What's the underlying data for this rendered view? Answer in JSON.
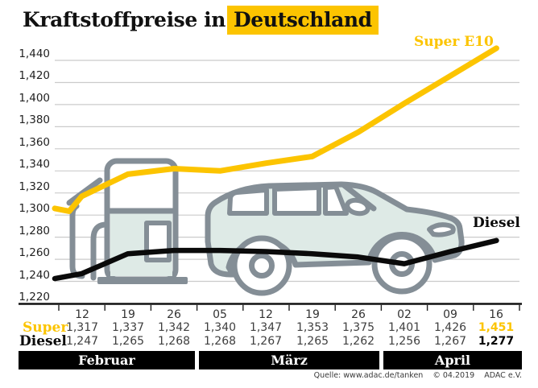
{
  "title": {
    "prefix": "Kraftstoffpreise in",
    "highlight": "Deutschland"
  },
  "line_labels": {
    "super": "Super E10",
    "diesel": "Diesel"
  },
  "colors": {
    "gold": "#FCC400",
    "line_black": "#0A0A0A",
    "grid": "#CBCBCB",
    "illustration_stroke": "#848E96",
    "illustration_fill": "#DEEAE6",
    "month_bar_bg": "#000000",
    "month_bar_text": "#FFFFFF"
  },
  "y_axis": {
    "labels": [
      "1,440",
      "1,420",
      "1,400",
      "1,380",
      "1,360",
      "1,340",
      "1,320",
      "1,300",
      "1,280",
      "1,260",
      "1,240",
      "1,220"
    ]
  },
  "table": {
    "dates": [
      "12",
      "19",
      "26",
      "05",
      "12",
      "19",
      "26",
      "02",
      "09",
      "16"
    ],
    "rows": [
      {
        "label": "Super",
        "values": [
          "1,317",
          "1,337",
          "1,342",
          "1,340",
          "1,347",
          "1,353",
          "1,375",
          "1,401",
          "1,426",
          "1,451"
        ]
      },
      {
        "label": "Diesel",
        "values": [
          "1,247",
          "1,265",
          "1,268",
          "1,268",
          "1,267",
          "1,265",
          "1,262",
          "1,256",
          "1,267",
          "1,277"
        ]
      }
    ]
  },
  "months": [
    {
      "label": "Februar",
      "cols": 3
    },
    {
      "label": "März",
      "cols": 4
    },
    {
      "label": "April",
      "cols": 3
    }
  ],
  "footer": {
    "source": "Quelle: www.adac.de/tanken",
    "copyright": "© 04.2019",
    "org": "ADAC e.V."
  },
  "chart_data": {
    "type": "line",
    "title": "Kraftstoffpreise in Deutschland",
    "x": [
      "12.02",
      "19.02",
      "26.02",
      "05.03",
      "12.03",
      "19.03",
      "26.03",
      "02.04",
      "09.04",
      "16.04"
    ],
    "xlabel": "",
    "ylabel": "",
    "ylim": [
      1.22,
      1.44
    ],
    "ytick_step": 0.02,
    "yticks": [
      1.44,
      1.42,
      1.4,
      1.38,
      1.36,
      1.34,
      1.32,
      1.3,
      1.28,
      1.26,
      1.24,
      1.22
    ],
    "grid": true,
    "legend_position": "inline-end-of-line",
    "series": [
      {
        "name": "Super E10",
        "color": "#FCC400",
        "values": [
          1.317,
          1.337,
          1.342,
          1.34,
          1.347,
          1.353,
          1.375,
          1.401,
          1.426,
          1.451
        ]
      },
      {
        "name": "Diesel",
        "color": "#0A0A0A",
        "values": [
          1.247,
          1.265,
          1.268,
          1.268,
          1.267,
          1.265,
          1.262,
          1.256,
          1.267,
          1.277
        ]
      }
    ],
    "lead_in": {
      "Super E10": [
        [
          68,
          1.306
        ],
        [
          86,
          1.3035
        ]
      ],
      "Diesel": [
        [
          68,
          1.2425
        ]
      ]
    }
  }
}
